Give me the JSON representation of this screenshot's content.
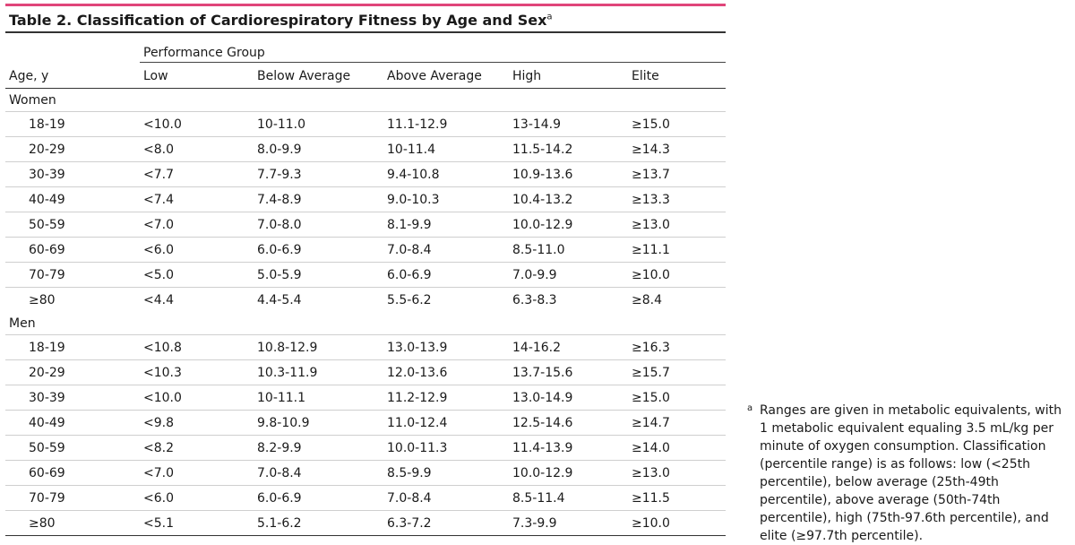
{
  "title": {
    "text": "Table 2. Classification of Cardiorespiratory Fitness by Age and Sex",
    "superscript": "a"
  },
  "header": {
    "group_label": "Performance Group",
    "age_label": "Age, y",
    "columns": [
      "Low",
      "Below Average",
      "Above Average",
      "High",
      "Elite"
    ]
  },
  "sections": [
    {
      "label": "Women",
      "rows": [
        {
          "age": "18-19",
          "values": [
            "<10.0",
            "10-11.0",
            "11.1-12.9",
            "13-14.9",
            "≥15.0"
          ]
        },
        {
          "age": "20-29",
          "values": [
            "<8.0",
            "8.0-9.9",
            "10-11.4",
            "11.5-14.2",
            "≥14.3"
          ]
        },
        {
          "age": "30-39",
          "values": [
            "<7.7",
            "7.7-9.3",
            "9.4-10.8",
            "10.9-13.6",
            "≥13.7"
          ]
        },
        {
          "age": "40-49",
          "values": [
            "<7.4",
            "7.4-8.9",
            "9.0-10.3",
            "10.4-13.2",
            "≥13.3"
          ]
        },
        {
          "age": "50-59",
          "values": [
            "<7.0",
            "7.0-8.0",
            "8.1-9.9",
            "10.0-12.9",
            "≥13.0"
          ]
        },
        {
          "age": "60-69",
          "values": [
            "<6.0",
            "6.0-6.9",
            "7.0-8.4",
            "8.5-11.0",
            "≥11.1"
          ]
        },
        {
          "age": "70-79",
          "values": [
            "<5.0",
            "5.0-5.9",
            "6.0-6.9",
            "7.0-9.9",
            "≥10.0"
          ]
        },
        {
          "age": "≥80",
          "values": [
            "<4.4",
            "4.4-5.4",
            "5.5-6.2",
            "6.3-8.3",
            "≥8.4"
          ]
        }
      ]
    },
    {
      "label": "Men",
      "rows": [
        {
          "age": "18-19",
          "values": [
            "<10.8",
            "10.8-12.9",
            "13.0-13.9",
            "14-16.2",
            "≥16.3"
          ]
        },
        {
          "age": "20-29",
          "values": [
            "<10.3",
            "10.3-11.9",
            "12.0-13.6",
            "13.7-15.6",
            "≥15.7"
          ]
        },
        {
          "age": "30-39",
          "values": [
            "<10.0",
            "10-11.1",
            "11.2-12.9",
            "13.0-14.9",
            "≥15.0"
          ]
        },
        {
          "age": "40-49",
          "values": [
            "<9.8",
            "9.8-10.9",
            "11.0-12.4",
            "12.5-14.6",
            "≥14.7"
          ]
        },
        {
          "age": "50-59",
          "values": [
            "<8.2",
            "8.2-9.9",
            "10.0-11.3",
            "11.4-13.9",
            "≥14.0"
          ]
        },
        {
          "age": "60-69",
          "values": [
            "<7.0",
            "7.0-8.4",
            "8.5-9.9",
            "10.0-12.9",
            "≥13.0"
          ]
        },
        {
          "age": "70-79",
          "values": [
            "<6.0",
            "6.0-6.9",
            "7.0-8.4",
            "8.5-11.4",
            "≥11.5"
          ]
        },
        {
          "age": "≥80",
          "values": [
            "<5.1",
            "5.1-6.2",
            "6.3-7.2",
            "7.3-9.9",
            "≥10.0"
          ]
        }
      ]
    }
  ],
  "footnote": {
    "marker": "a",
    "text": "Ranges are given in metabolic equivalents, with 1 metabolic equivalent equaling 3.5 mL/kg per minute of oxygen consumption. Classification (percentile range) is as follows: low (<25th percentile), below average (25th-49th percentile), above average (50th-74th percentile), high (75th-97.6th percentile), and elite (≥97.7th percentile)."
  },
  "colors": {
    "accent_rule": "#e0457a",
    "rule_dark": "#333333",
    "row_divider": "#cfcfcf"
  }
}
